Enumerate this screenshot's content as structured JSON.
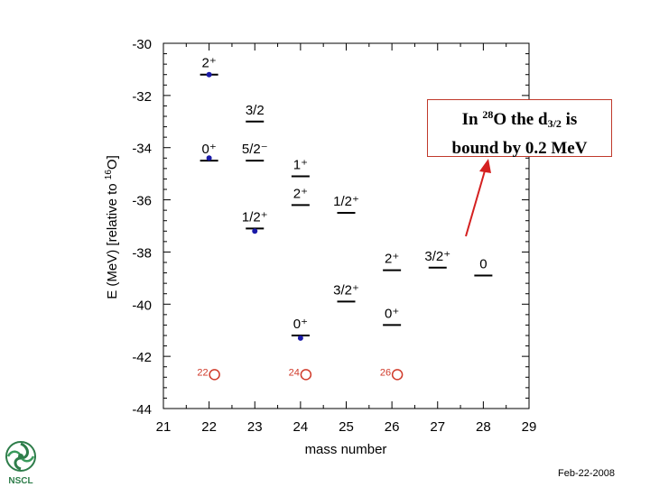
{
  "chart_data": {
    "type": "scatter",
    "xlabel": "mass number",
    "ylabel_main": "E (MeV) [relative to ",
    "ylabel_sup": "16",
    "ylabel_end": "O]",
    "xlim": [
      21,
      29
    ],
    "ylim": [
      -44,
      -30
    ],
    "xticks": [
      21,
      22,
      23,
      24,
      25,
      26,
      27,
      28,
      29
    ],
    "yticks": [
      -30,
      -32,
      -34,
      -36,
      -38,
      -40,
      -42,
      -44
    ],
    "levels": [
      {
        "x": 22,
        "y": -31.2,
        "label": "2⁺"
      },
      {
        "x": 22,
        "y": -34.5,
        "label": "0⁺"
      },
      {
        "x": 23,
        "y": -33.0,
        "label": "3/2"
      },
      {
        "x": 23,
        "y": -34.5,
        "label": "5/2⁻"
      },
      {
        "x": 23,
        "y": -37.1,
        "label": "1/2⁺"
      },
      {
        "x": 24,
        "y": -35.1,
        "label": "1⁺"
      },
      {
        "x": 24,
        "y": -36.2,
        "label": "2⁺"
      },
      {
        "x": 24,
        "y": -41.2,
        "label": "0⁺"
      },
      {
        "x": 25,
        "y": -36.5,
        "label": "1/2⁺"
      },
      {
        "x": 25,
        "y": -39.9,
        "label": "3/2⁺"
      },
      {
        "x": 26,
        "y": -38.7,
        "label": "2⁺"
      },
      {
        "x": 26,
        "y": -40.8,
        "label": "0⁺"
      },
      {
        "x": 27,
        "y": -38.6,
        "label": "3/2⁺"
      },
      {
        "x": 28,
        "y": -38.9,
        "label": "0"
      }
    ],
    "experimental_points": [
      {
        "x": 22,
        "y": -31.2
      },
      {
        "x": 22,
        "y": -34.4
      },
      {
        "x": 23,
        "y": -37.2
      },
      {
        "x": 24,
        "y": -41.3
      }
    ],
    "red_circles": [
      {
        "x": 22,
        "y": -42.7,
        "label": "22"
      },
      {
        "x": 24,
        "y": -42.7,
        "label": "24"
      },
      {
        "x": 26,
        "y": -42.7,
        "label": "26"
      }
    ],
    "colors": {
      "level": "#000000",
      "point": "#1a1aa8",
      "circle": "#d03a2a",
      "arrow": "#d42020"
    }
  },
  "annotation": {
    "text_pre": "In ",
    "mass": "28",
    "text_mid": "O the d",
    "sub": "3/2",
    "text_post": " is",
    "line2": "bound by 0.2 MeV"
  },
  "footer": {
    "date": "Feb-22-2008"
  },
  "logo": {
    "text": "NSCL"
  }
}
